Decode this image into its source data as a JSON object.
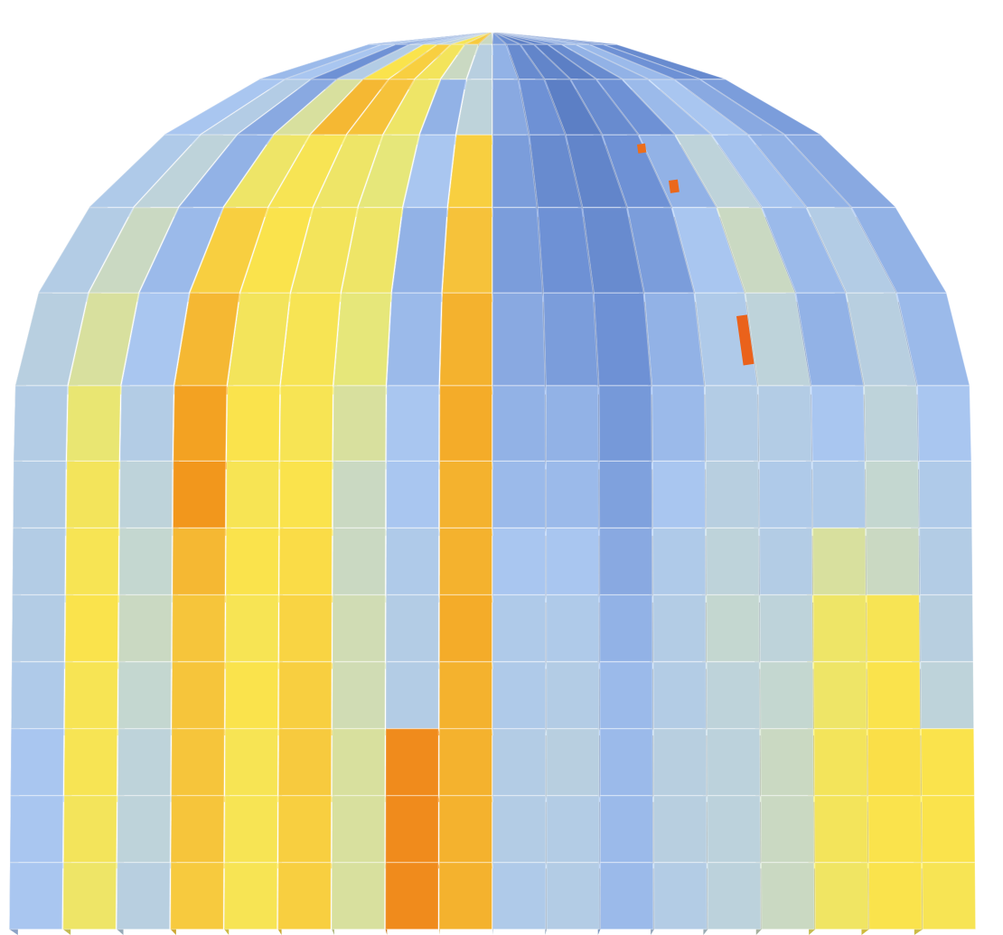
{
  "chart_data": {
    "type": "3d-polar-bar",
    "title": "",
    "xlabel": "",
    "ylabel": "",
    "legend": "none",
    "grid": false,
    "colormap": [
      "#4b6db5",
      "#6f93d6",
      "#a9c6f0",
      "#c3d6d4",
      "#e6e77a",
      "#fbe34a",
      "#f6c23a",
      "#f29a1c",
      "#e8501b"
    ],
    "value_range": [
      0,
      1
    ],
    "columns": 18,
    "rows": 14,
    "values": [
      [
        0.2,
        0.22,
        0.15,
        0.22,
        0.28,
        0.35,
        0.6,
        0.72,
        0.4,
        0.15,
        0.1,
        0.06,
        0.08,
        0.12,
        0.18,
        0.2,
        0.1,
        0.1
      ],
      [
        0.22,
        0.25,
        0.12,
        0.3,
        0.62,
        0.7,
        0.58,
        0.4,
        0.32,
        0.2,
        0.1,
        0.08,
        0.06,
        0.1,
        0.2,
        0.22,
        0.12,
        0.1
      ],
      [
        0.25,
        0.3,
        0.18,
        0.45,
        0.78,
        0.75,
        0.55,
        0.2,
        0.35,
        0.18,
        0.12,
        0.06,
        0.1,
        0.12,
        0.22,
        0.25,
        0.18,
        0.15
      ],
      [
        0.28,
        0.35,
        0.2,
        0.55,
        0.6,
        0.55,
        0.5,
        0.25,
        0.7,
        0.15,
        0.1,
        0.08,
        0.12,
        0.2,
        0.35,
        0.24,
        0.2,
        0.18
      ],
      [
        0.3,
        0.4,
        0.22,
        0.7,
        0.62,
        0.58,
        0.55,
        0.2,
        0.75,
        0.15,
        0.12,
        0.1,
        0.15,
        0.25,
        0.4,
        0.22,
        0.3,
        0.2
      ],
      [
        0.32,
        0.45,
        0.25,
        0.78,
        0.58,
        0.6,
        0.5,
        0.22,
        0.8,
        0.18,
        0.15,
        0.12,
        0.2,
        0.28,
        0.35,
        0.2,
        0.32,
        0.22
      ],
      [
        0.3,
        0.52,
        0.3,
        0.85,
        0.62,
        0.6,
        0.45,
        0.25,
        0.82,
        0.2,
        0.2,
        0.14,
        0.22,
        0.3,
        0.3,
        0.25,
        0.35,
        0.25
      ],
      [
        0.3,
        0.58,
        0.35,
        0.88,
        0.6,
        0.62,
        0.4,
        0.25,
        0.8,
        0.22,
        0.22,
        0.16,
        0.25,
        0.32,
        0.28,
        0.28,
        0.38,
        0.28
      ],
      [
        0.3,
        0.6,
        0.38,
        0.78,
        0.62,
        0.65,
        0.4,
        0.28,
        0.8,
        0.25,
        0.25,
        0.18,
        0.28,
        0.35,
        0.3,
        0.45,
        0.4,
        0.3
      ],
      [
        0.3,
        0.62,
        0.4,
        0.74,
        0.6,
        0.68,
        0.42,
        0.3,
        0.82,
        0.28,
        0.28,
        0.2,
        0.3,
        0.38,
        0.35,
        0.55,
        0.6,
        0.32
      ],
      [
        0.28,
        0.6,
        0.38,
        0.74,
        0.62,
        0.7,
        0.42,
        0.3,
        0.8,
        0.28,
        0.3,
        0.22,
        0.3,
        0.35,
        0.38,
        0.55,
        0.62,
        0.35
      ],
      [
        0.25,
        0.6,
        0.35,
        0.74,
        0.6,
        0.72,
        0.45,
        0.9,
        0.8,
        0.3,
        0.32,
        0.22,
        0.32,
        0.34,
        0.4,
        0.58,
        0.64,
        0.62
      ],
      [
        0.25,
        0.58,
        0.35,
        0.74,
        0.6,
        0.7,
        0.45,
        0.9,
        0.8,
        0.3,
        0.3,
        0.22,
        0.32,
        0.34,
        0.4,
        0.58,
        0.62,
        0.62
      ],
      [
        0.25,
        0.55,
        0.32,
        0.72,
        0.6,
        0.7,
        0.45,
        0.9,
        0.8,
        0.28,
        0.3,
        0.22,
        0.3,
        0.34,
        0.4,
        0.56,
        0.62,
        0.6
      ]
    ],
    "hotspots": [
      0.97,
      0.96,
      0.95
    ]
  }
}
